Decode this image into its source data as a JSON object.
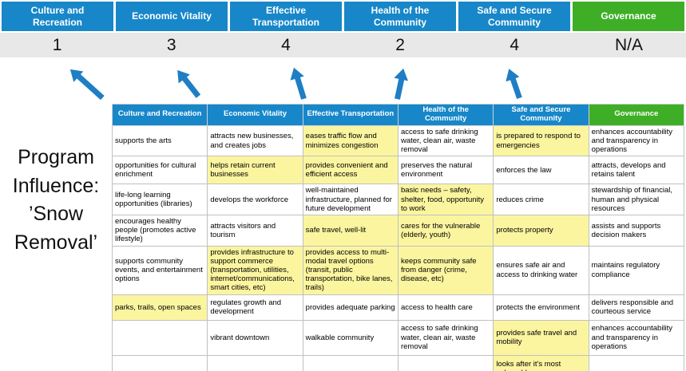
{
  "colors": {
    "header_blue": "#1787c9",
    "header_green": "#3fae27",
    "highlight_yellow": "#fbf5a0",
    "score_band_gray": "#e8e8e8",
    "arrow_blue": "#1f7ec4"
  },
  "program_label": {
    "text": "Program\nInfluence:\n’Snow\nRemoval’"
  },
  "summary": {
    "categories": [
      {
        "label": "Culture and Recreation",
        "score": "1",
        "accent": "blue"
      },
      {
        "label": "Economic Vitality",
        "score": "3",
        "accent": "blue"
      },
      {
        "label": "Effective Transportation",
        "score": "4",
        "accent": "blue"
      },
      {
        "label": "Health of the Community",
        "score": "2",
        "accent": "blue"
      },
      {
        "label": "Safe and Secure Community",
        "score": "4",
        "accent": "blue"
      },
      {
        "label": "Governance",
        "score": "N/A",
        "accent": "green"
      }
    ]
  },
  "table": {
    "headers": [
      {
        "label": "Culture and Recreation",
        "accent": "blue"
      },
      {
        "label": "Economic Vitality",
        "accent": "blue"
      },
      {
        "label": "Effective Transportation",
        "accent": "blue"
      },
      {
        "label": "Health of the Community",
        "accent": "blue"
      },
      {
        "label": "Safe and Secure Community",
        "accent": "blue"
      },
      {
        "label": "Governance",
        "accent": "green"
      }
    ],
    "rows": [
      [
        {
          "text": "supports the arts",
          "highlight": false
        },
        {
          "text": "attracts new businesses, and creates jobs",
          "highlight": false
        },
        {
          "text": "eases traffic flow and minimizes congestion",
          "highlight": true
        },
        {
          "text": "access to safe drinking water, clean air, waste removal",
          "highlight": false
        },
        {
          "text": "is prepared to respond to emergencies",
          "highlight": true
        },
        {
          "text": "enhances accountability and transparency in operations",
          "highlight": false
        }
      ],
      [
        {
          "text": "opportunities for cultural enrichment",
          "highlight": false
        },
        {
          "text": "helps retain current businesses",
          "highlight": true
        },
        {
          "text": "provides convenient and efficient access",
          "highlight": true
        },
        {
          "text": "preserves the natural environment",
          "highlight": false
        },
        {
          "text": "enforces the law",
          "highlight": false
        },
        {
          "text": "attracts, develops and retains talent",
          "highlight": false
        }
      ],
      [
        {
          "text": "life-long learning opportunities (libraries)",
          "highlight": false
        },
        {
          "text": "develops the workforce",
          "highlight": false
        },
        {
          "text": "well-maintained infrastructure, planned for future development",
          "highlight": false
        },
        {
          "text": "basic needs – safety, shelter, food, opportunity to work",
          "highlight": true
        },
        {
          "text": "reduces crime",
          "highlight": false
        },
        {
          "text": "stewardship of financial, human and physical resources",
          "highlight": false
        }
      ],
      [
        {
          "text": "encourages healthy people (promotes active lifestyle)",
          "highlight": false
        },
        {
          "text": "attracts visitors and tourism",
          "highlight": false
        },
        {
          "text": "safe travel, well-lit",
          "highlight": true
        },
        {
          "text": "cares for the vulnerable (elderly, youth)",
          "highlight": true
        },
        {
          "text": "protects property",
          "highlight": true
        },
        {
          "text": "assists and supports decision makers",
          "highlight": false
        }
      ],
      [
        {
          "text": "supports community events, and entertainment options",
          "highlight": false
        },
        {
          "text": "provides infrastructure to support commerce (transportation, utilities, internet/communications, smart cities, etc)",
          "highlight": true
        },
        {
          "text": "provides access to multi-modal travel options (transit, public transportation, bike lanes, trails)",
          "highlight": true
        },
        {
          "text": "keeps community safe from danger (crime, disease, etc)",
          "highlight": true
        },
        {
          "text": "ensures safe air and access to drinking water",
          "highlight": false
        },
        {
          "text": "maintains regulatory compliance",
          "highlight": false
        }
      ],
      [
        {
          "text": "parks, trails, open spaces",
          "highlight": true
        },
        {
          "text": "regulates growth and development",
          "highlight": false
        },
        {
          "text": "provides adequate parking",
          "highlight": false
        },
        {
          "text": "access to health care",
          "highlight": false
        },
        {
          "text": "protects the environment",
          "highlight": false
        },
        {
          "text": "delivers responsible and courteous service",
          "highlight": false
        }
      ],
      [
        {
          "text": "",
          "highlight": false
        },
        {
          "text": "vibrant downtown",
          "highlight": false
        },
        {
          "text": "walkable community",
          "highlight": false
        },
        {
          "text": "access to safe drinking water, clean air, waste removal",
          "highlight": false
        },
        {
          "text": "provides safe travel and mobility",
          "highlight": true
        },
        {
          "text": "enhances accountability and transparency in operations",
          "highlight": false
        }
      ],
      [
        {
          "text": "",
          "highlight": false
        },
        {
          "text": "",
          "highlight": false
        },
        {
          "text": "",
          "highlight": false
        },
        {
          "text": "",
          "highlight": false
        },
        {
          "text": "looks after it's most vulnerable",
          "highlight": true
        },
        {
          "text": "",
          "highlight": false
        }
      ]
    ]
  }
}
